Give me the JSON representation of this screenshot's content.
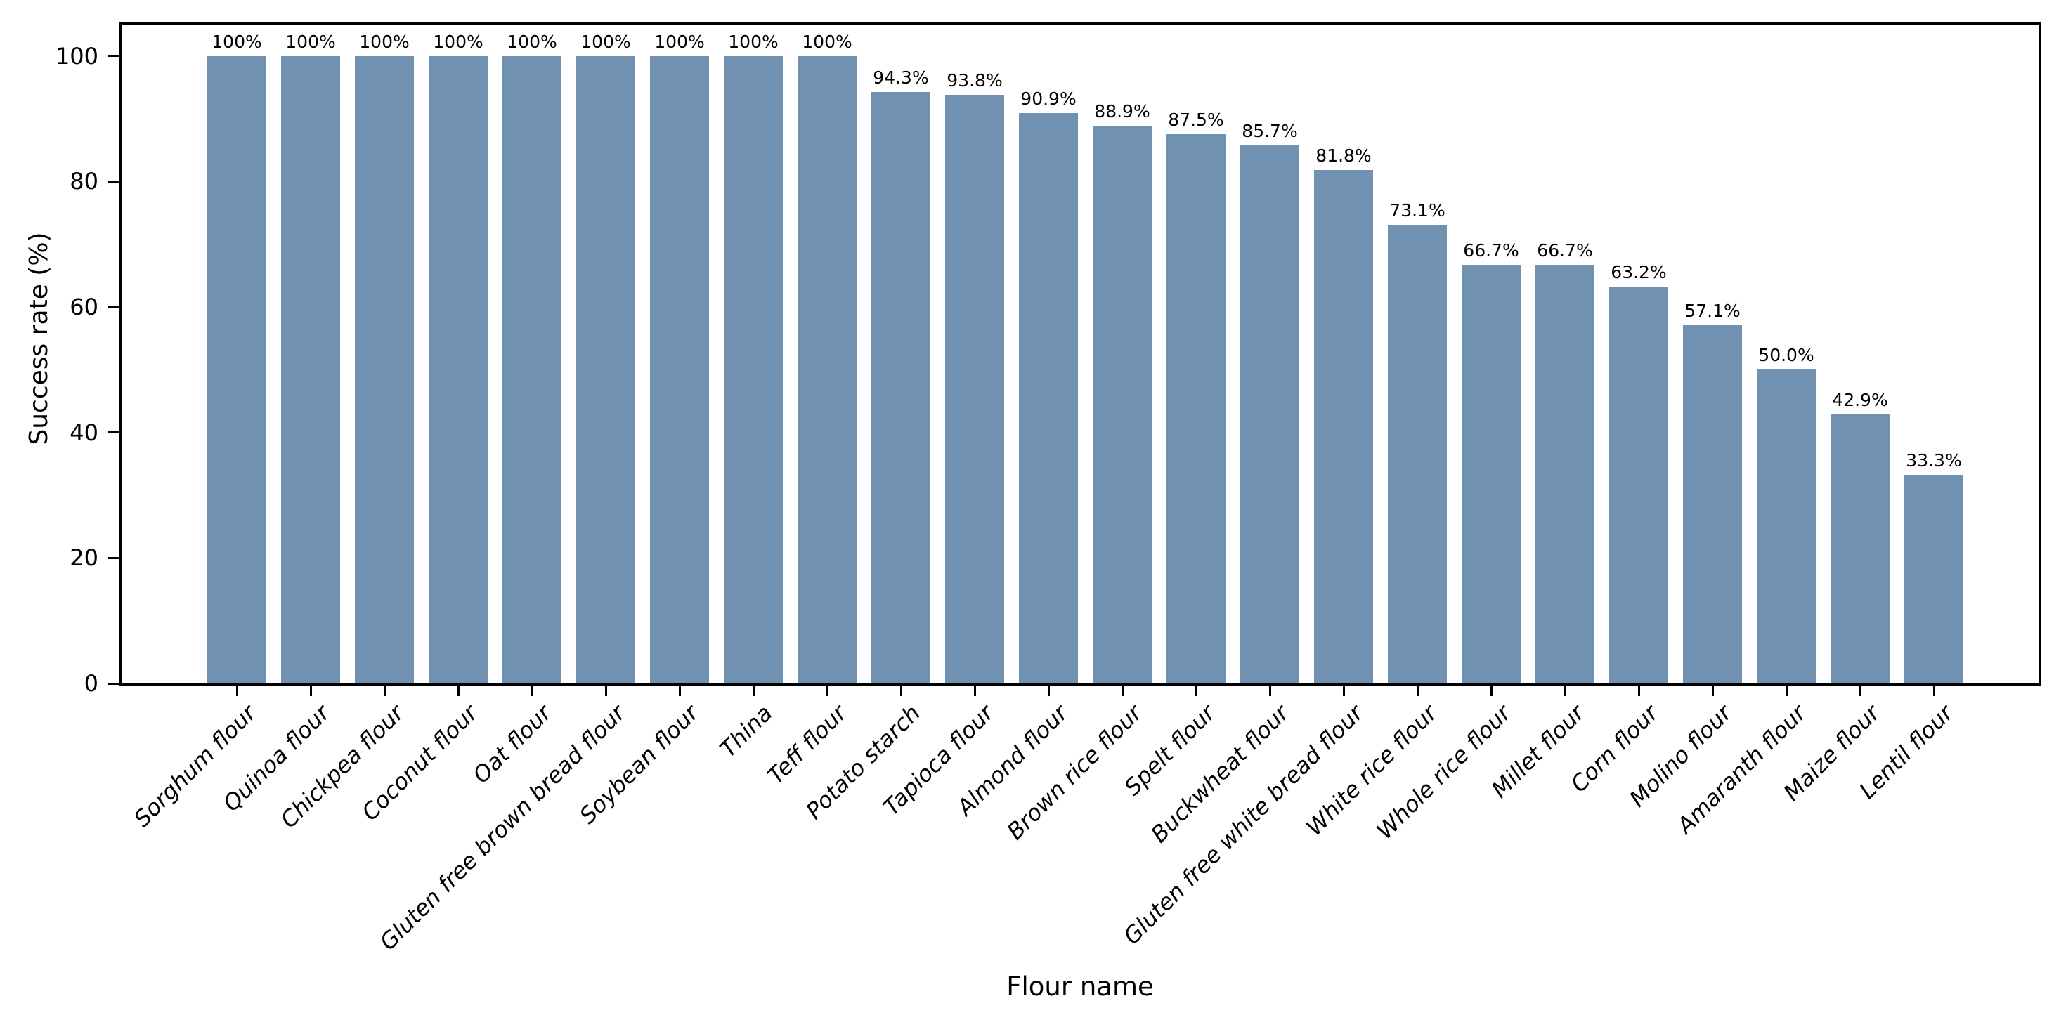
{
  "chart_data": {
    "type": "bar",
    "title": "",
    "xlabel": "Flour name",
    "ylabel": "Success rate (%)",
    "ylim": [
      0,
      105
    ],
    "yticks": [
      0,
      20,
      40,
      60,
      80,
      100
    ],
    "grid": false,
    "legend": "none",
    "bar_color": "#7191b2",
    "categories": [
      "Sorghum flour",
      "Quinoa flour",
      "Chickpea flour",
      "Coconut flour",
      "Oat flour",
      "Gluten free brown bread flour",
      "Soybean flour",
      "Thina",
      "Teff flour",
      "Potato starch",
      "Tapioca flour",
      "Almond flour",
      "Brown rice flour",
      "Spelt flour",
      "Buckwheat flour",
      "Gluten free white bread flour",
      "White rice flour",
      "Whole rice flour",
      "Millet flour",
      "Corn flour",
      "Molino flour",
      "Amaranth flour",
      "Maize flour",
      "Lentil flour"
    ],
    "values": [
      100,
      100,
      100,
      100,
      100,
      100,
      100,
      100,
      100,
      94.3,
      93.8,
      90.9,
      88.9,
      87.5,
      85.7,
      81.8,
      73.1,
      66.7,
      66.7,
      63.2,
      57.1,
      50.0,
      42.9,
      33.3
    ],
    "value_labels": [
      "100%",
      "100%",
      "100%",
      "100%",
      "100%",
      "100%",
      "100%",
      "100%",
      "100%",
      "94.3%",
      "93.8%",
      "90.9%",
      "88.9%",
      "87.5%",
      "85.7%",
      "81.8%",
      "73.1%",
      "66.7%",
      "66.7%",
      "63.2%",
      "57.1%",
      "50.0%",
      "42.9%",
      "33.3%"
    ]
  }
}
